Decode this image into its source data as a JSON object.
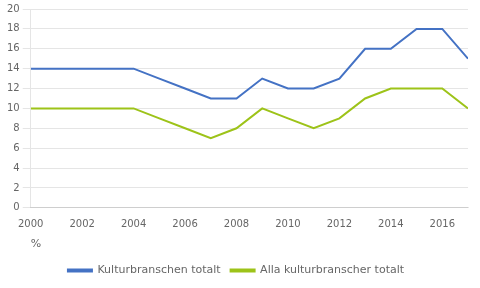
{
  "chart_data": {
    "type": "line",
    "x": [
      2000,
      2001,
      2002,
      2003,
      2004,
      2005,
      2006,
      2007,
      2008,
      2009,
      2010,
      2011,
      2012,
      2013,
      2014,
      2015,
      2016,
      2017
    ],
    "series": [
      {
        "name": "Kulturbranschen totalt",
        "color": "#4472c4",
        "values": [
          14,
          14,
          14,
          14,
          14,
          13,
          12,
          11,
          11,
          13,
          12,
          12,
          13,
          16,
          16,
          18,
          18,
          15
        ]
      },
      {
        "name": "Alla kulturbranscher totalt",
        "color": "#9dc319",
        "values": [
          10,
          10,
          10,
          10,
          10,
          9,
          8,
          7,
          8,
          10,
          9,
          8,
          9,
          11,
          12,
          12,
          12,
          10
        ]
      }
    ],
    "xlabel": "%",
    "xlim": [
      2000,
      2017
    ],
    "xticks": [
      2000,
      2002,
      2004,
      2006,
      2008,
      2010,
      2012,
      2014,
      2016
    ],
    "ylim": [
      0,
      20
    ],
    "yticks": [
      0,
      2,
      4,
      6,
      8,
      10,
      12,
      14,
      16,
      18,
      20
    ],
    "grid": "y",
    "legend": "bottom"
  }
}
